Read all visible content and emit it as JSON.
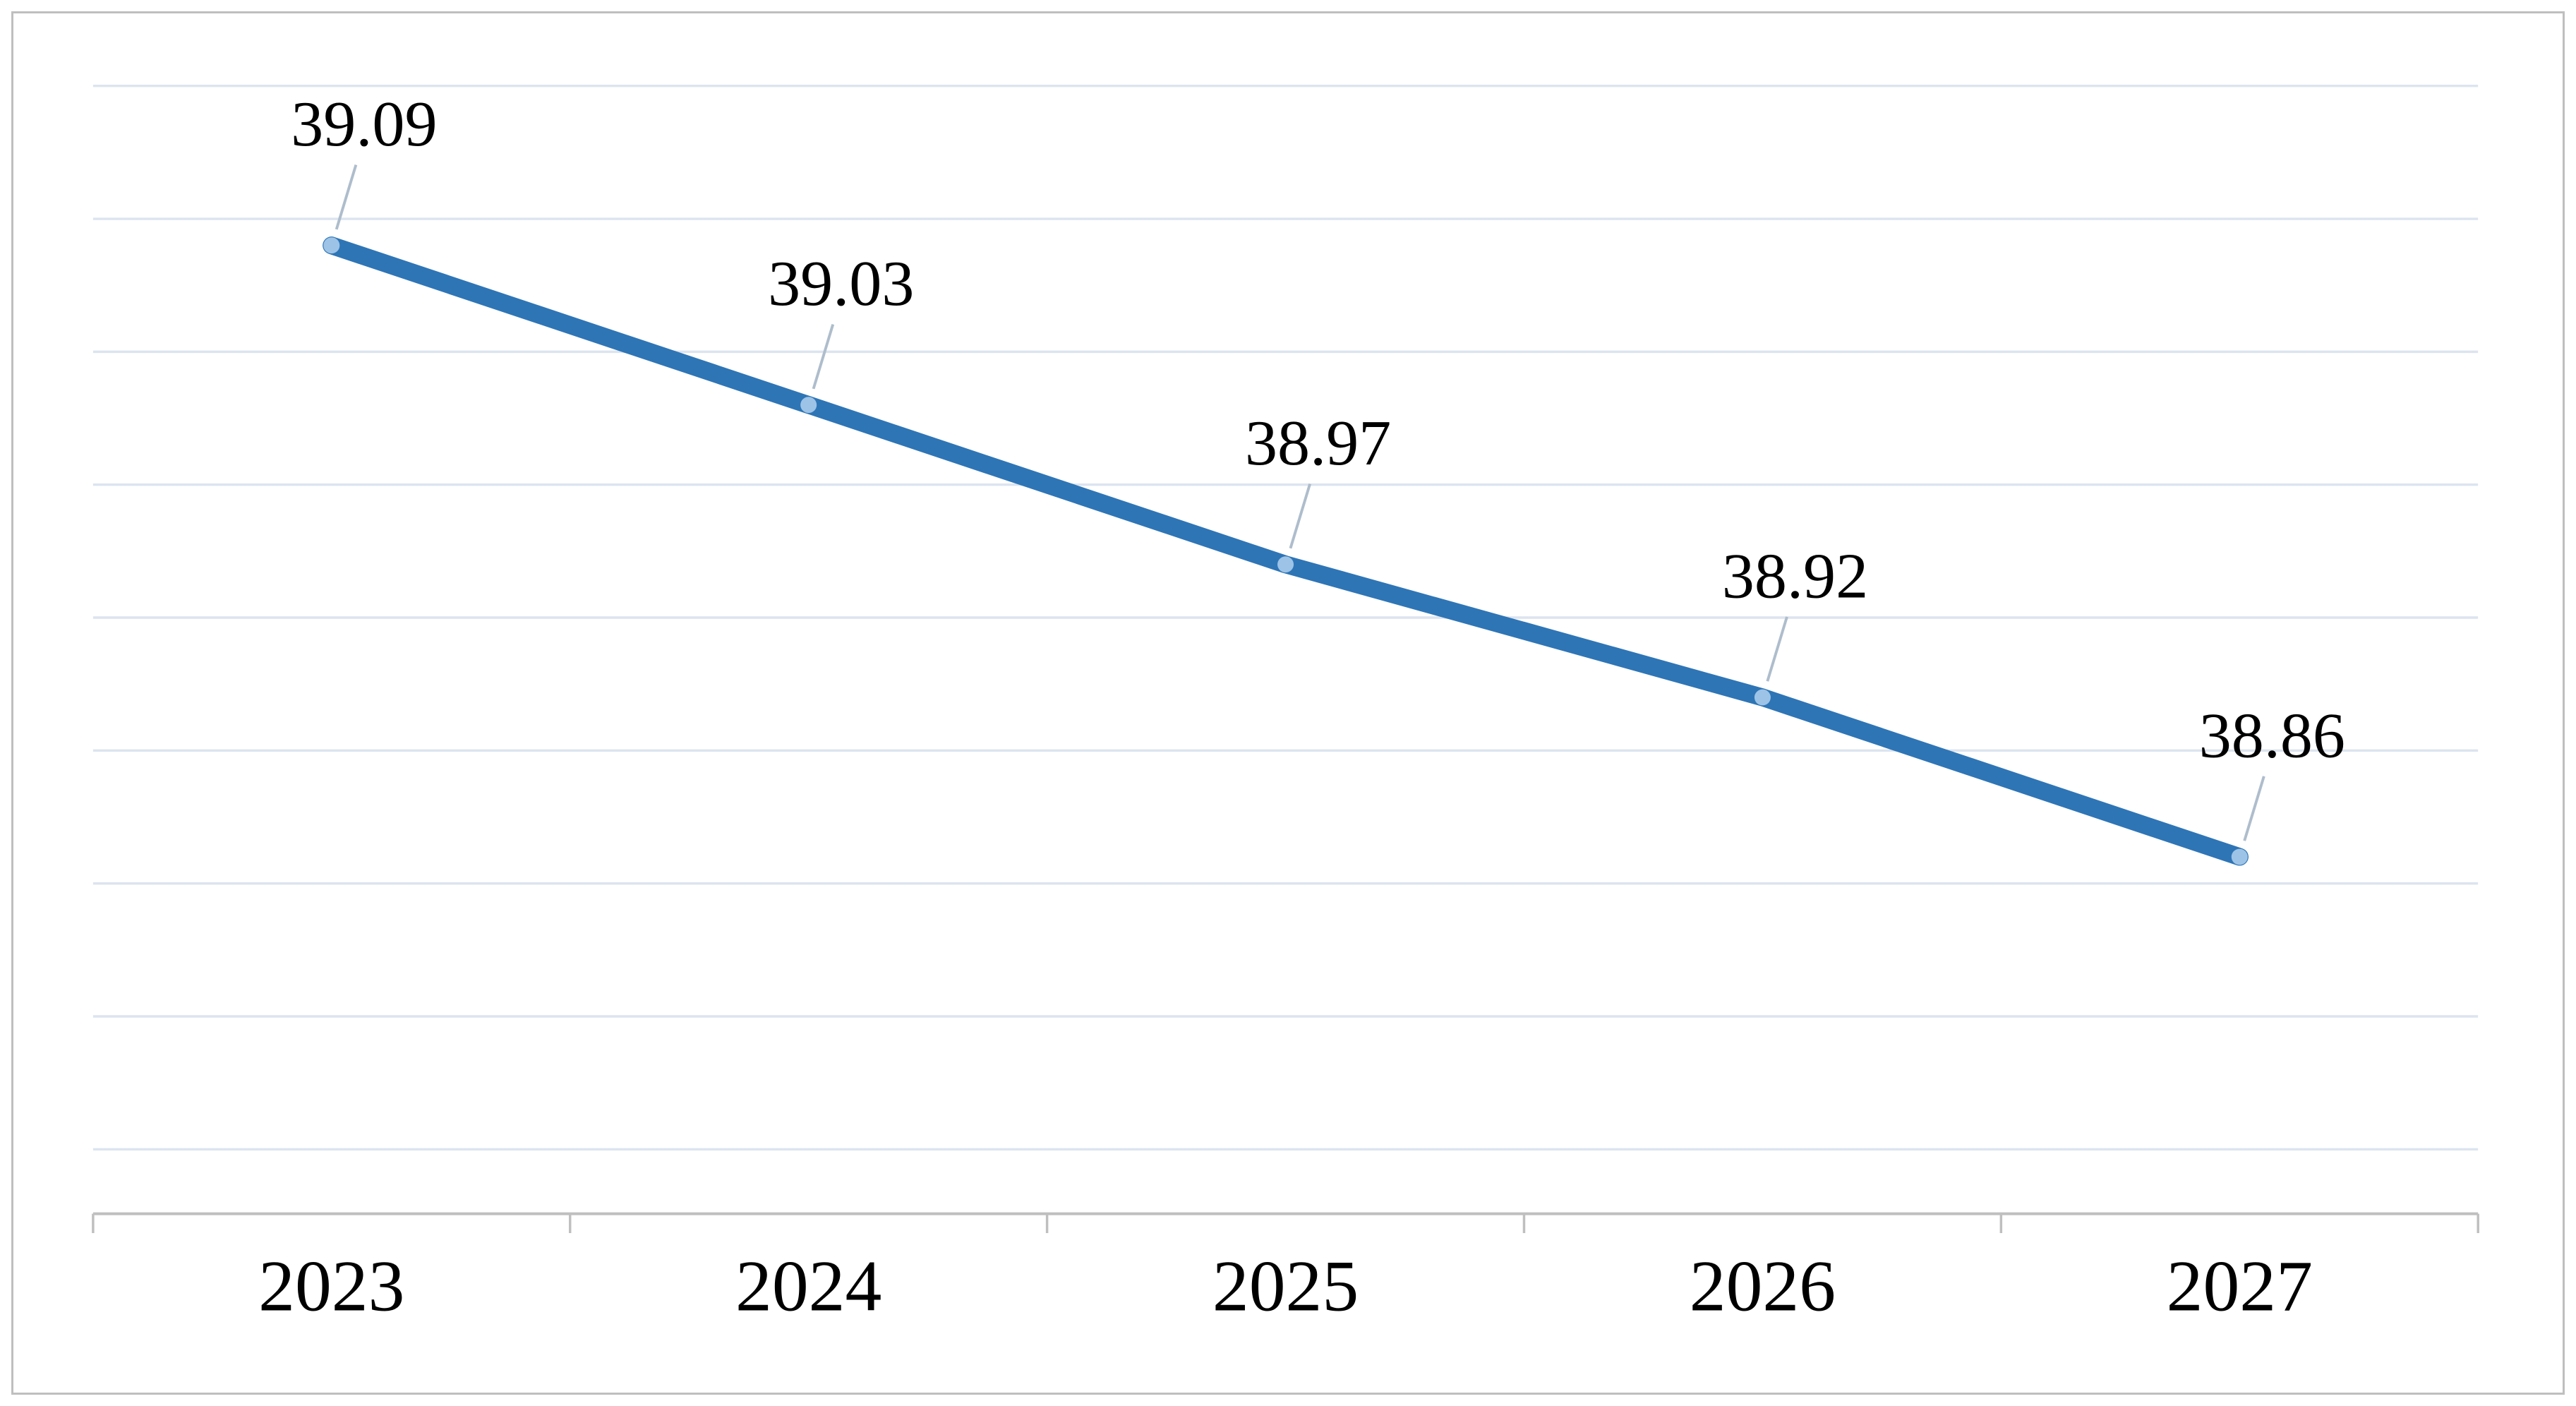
{
  "chart_data": {
    "type": "line",
    "title": "",
    "xlabel": "",
    "ylabel": "",
    "categories": [
      "2023",
      "2024",
      "2025",
      "2026",
      "2027"
    ],
    "values": [
      39.09,
      39.03,
      38.97,
      38.92,
      38.86
    ],
    "data_labels": [
      "39.09",
      "39.03",
      "38.97",
      "38.92",
      "38.86"
    ],
    "ylim": [
      38.75,
      39.15
    ],
    "gridline_step": 0.05,
    "grid": true,
    "legend": false,
    "colors": {
      "line": "#2E75B6",
      "marker": "#9DC3E6",
      "gridline": "#DCE4EF",
      "axis": "#BFBFBF",
      "leader_line": "#AEBDCC",
      "label_text": "#000000",
      "axis_label_text": "#000000",
      "background": "#FFFFFF",
      "border": "#BFBFBF"
    }
  }
}
